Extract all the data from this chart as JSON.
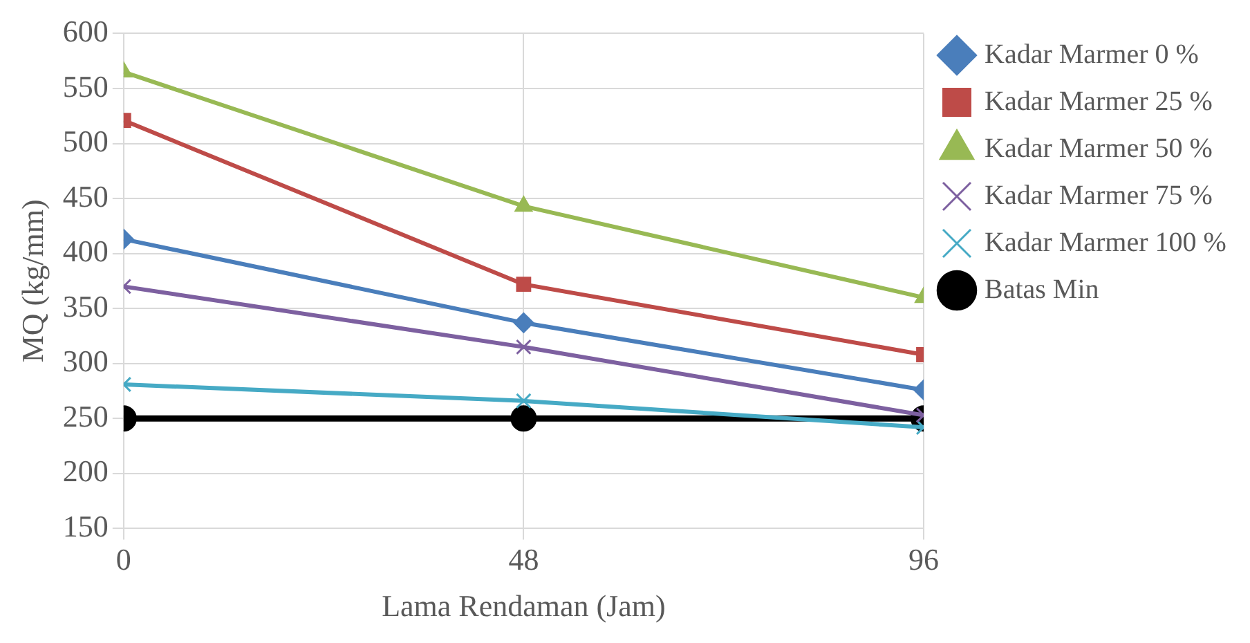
{
  "chart_data": {
    "type": "line",
    "xlabel": "Lama Rendaman (Jam)",
    "ylabel": "MQ (kg/mm)",
    "x": [
      0,
      48,
      96
    ],
    "xlim": [
      0,
      96
    ],
    "xticks": [
      0,
      48,
      96
    ],
    "ylim": [
      150,
      600
    ],
    "yticks": [
      150,
      200,
      250,
      300,
      350,
      400,
      450,
      500,
      550,
      600
    ],
    "grid": true,
    "legend": "right",
    "series": [
      {
        "name": "Kadar Marmer 0 %",
        "color": "#4a7ebb",
        "marker": "diamond",
        "values": [
          413,
          337,
          276
        ]
      },
      {
        "name": "Kadar Marmer 25 %",
        "color": "#be4b48",
        "marker": "square",
        "values": [
          521,
          372,
          308
        ]
      },
      {
        "name": "Kadar Marmer 50 %",
        "color": "#98b954",
        "marker": "triangle",
        "values": [
          565,
          443,
          360
        ]
      },
      {
        "name": "Kadar Marmer 75 %",
        "color": "#7d60a0",
        "marker": "cross",
        "values": [
          370,
          315,
          253
        ]
      },
      {
        "name": "Kadar Marmer 100 %",
        "color": "#46aac5",
        "marker": "cross",
        "values": [
          281,
          266,
          242
        ]
      },
      {
        "name": "Batas Min",
        "color": "#000000",
        "marker": "circle",
        "values": [
          250,
          250,
          250
        ]
      }
    ]
  }
}
